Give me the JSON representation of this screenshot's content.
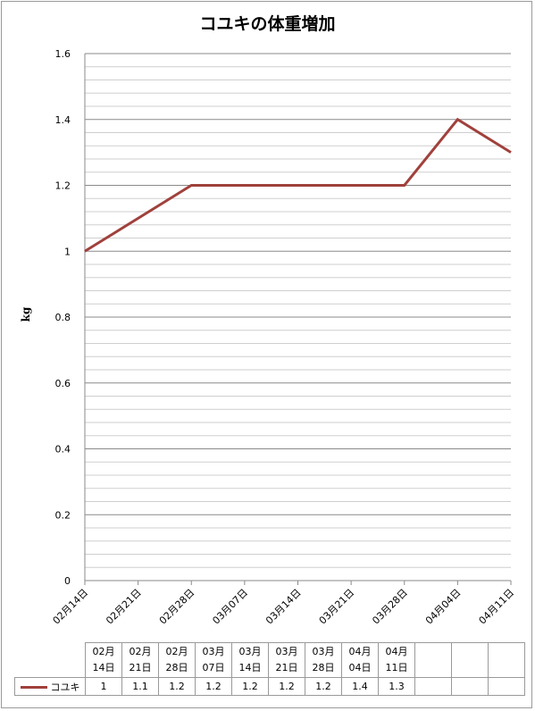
{
  "chart_data": {
    "type": "line",
    "title": "コユキの体重増加",
    "ylabel": "kg",
    "xlabel": "",
    "ylim": [
      0,
      1.6
    ],
    "y_ticks": [
      "0",
      "0.2",
      "0.4",
      "0.6",
      "0.8",
      "1",
      "1.2",
      "1.4",
      "1.6"
    ],
    "grid": true,
    "x_categories": [
      "02月14日",
      "02月21日",
      "02月28日",
      "03月07日",
      "03月14日",
      "03月21日",
      "03月28日",
      "04月04日",
      "04月11日"
    ],
    "series": [
      {
        "name": "コユキ",
        "color": "#a0413c",
        "values": [
          1,
          1.1,
          1.2,
          1.2,
          1.2,
          1.2,
          1.2,
          1.4,
          1.3
        ]
      }
    ],
    "data_table": {
      "headers": [
        [
          "02月",
          "14日"
        ],
        [
          "02月",
          "21日"
        ],
        [
          "02月",
          "28日"
        ],
        [
          "03月",
          "07日"
        ],
        [
          "03月",
          "14日"
        ],
        [
          "03月",
          "21日"
        ],
        [
          "03月",
          "28日"
        ],
        [
          "04月",
          "04日"
        ],
        [
          "04月",
          "11日"
        ]
      ],
      "values": [
        "1",
        "1.1",
        "1.2",
        "1.2",
        "1.2",
        "1.2",
        "1.2",
        "1.4",
        "1.3"
      ],
      "empty_columns": 3
    }
  }
}
